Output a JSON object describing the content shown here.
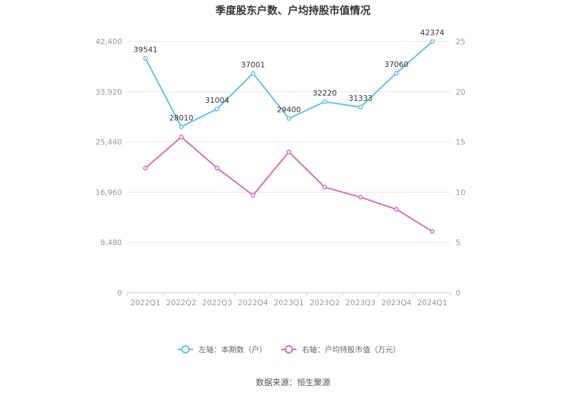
{
  "chart_data": {
    "type": "line",
    "title": "季度股东户数、户均持股市值情况",
    "categories": [
      "2022Q1",
      "2022Q2",
      "2022Q3",
      "2022Q4",
      "2023Q1",
      "2023Q2",
      "2023Q3",
      "2023Q4",
      "2024Q1"
    ],
    "y_left": {
      "ticks": [
        "0",
        "8,480",
        "16,960",
        "25,440",
        "33,920",
        "42,400"
      ],
      "min": 0,
      "max": 42400
    },
    "y_right": {
      "ticks": [
        "0",
        "5",
        "10",
        "15",
        "20",
        "25"
      ],
      "min": 0,
      "max": 25
    },
    "grid": true,
    "legend_position": "bottom-center",
    "series": [
      {
        "name": "左轴：本期数（户）",
        "axis": "left",
        "color": "#5bc0eb",
        "values": [
          39541,
          28010,
          31004,
          37001,
          29400,
          32220,
          31333,
          37060,
          42374
        ],
        "labels": [
          "39541",
          "28010",
          "31004",
          "37001",
          "29400",
          "32220",
          "31333",
          "37060",
          "42374"
        ]
      },
      {
        "name": "右轴：户均持股市值（万元）",
        "axis": "right",
        "color": "#d36bb3",
        "values": [
          12.4,
          15.5,
          12.4,
          9.7,
          14.0,
          10.5,
          9.5,
          8.3,
          6.1
        ]
      }
    ],
    "source": "数据来源：恒生聚源"
  }
}
